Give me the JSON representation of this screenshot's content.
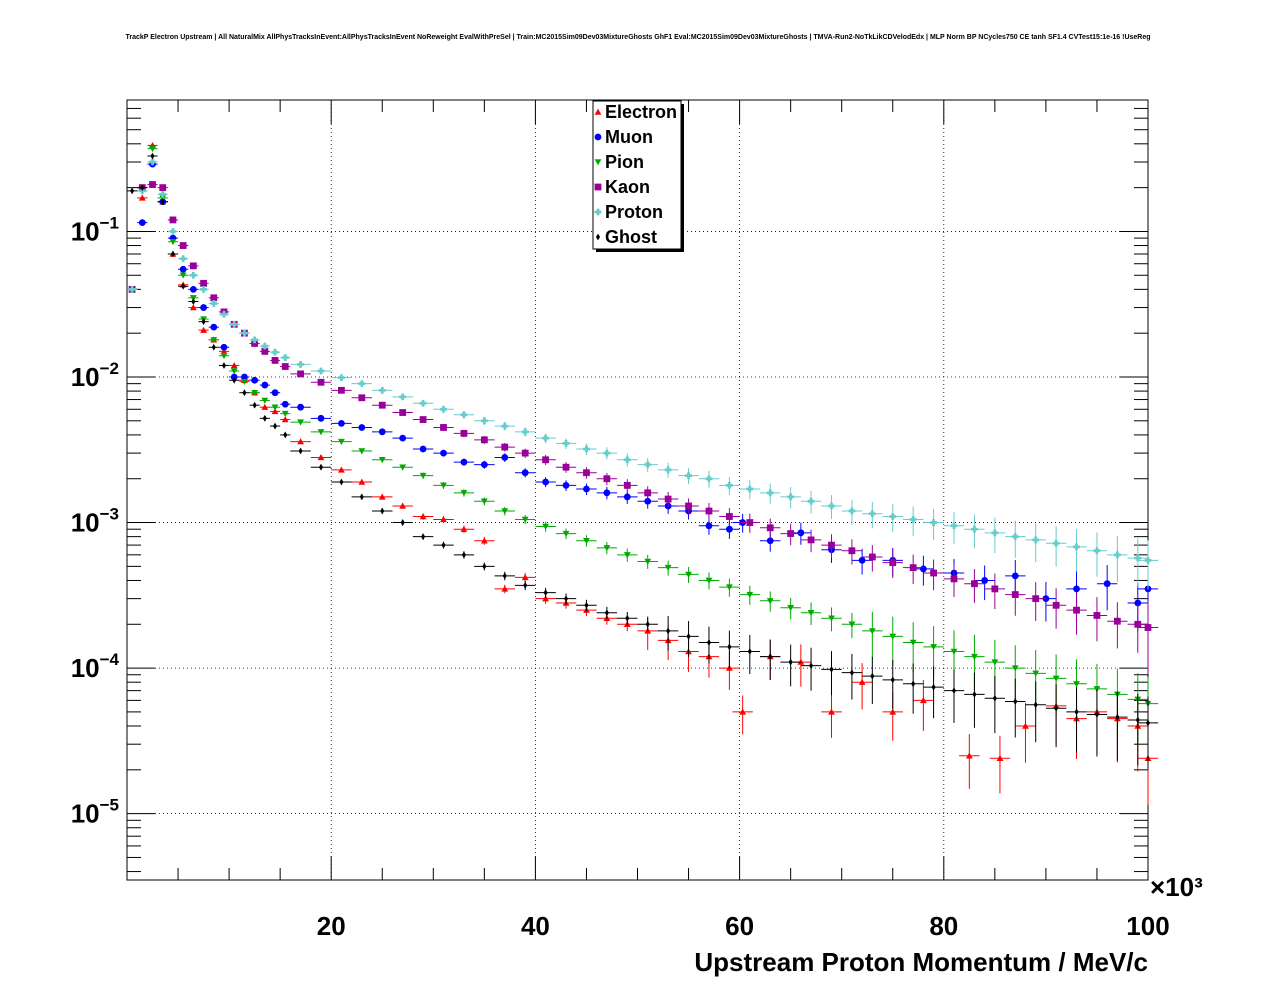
{
  "chart_data": {
    "type": "scatter",
    "title": "TrackP Electron Upstream | All NaturalMix AllPhysTracksInEvent:AllPhysTracksInEvent NoReweight EvalWithPreSel | Train:MC2015Sim09Dev03MixtureGhosts GhF1 Eval:MC2015Sim09Dev03MixtureGhosts | TMVA-Run2-NoTkLikCDVelodEdx | MLP Norm BP NCycles750 CE tanh SF1.4 CVTest15:1e-16 !UseReg",
    "xlabel": "Upstream Proton Momentum / MeV/c",
    "ylabel": "",
    "x_multiplier": "×10³",
    "xlim": [
      0,
      100000
    ],
    "ylim": [
      3.5e-06,
      0.8
    ],
    "y_scale": "log",
    "grid": true,
    "legend_position": "top-center",
    "x_ticks": [
      {
        "value": 20000,
        "label": "20"
      },
      {
        "value": 40000,
        "label": "40"
      },
      {
        "value": 60000,
        "label": "60"
      },
      {
        "value": 80000,
        "label": "80"
      },
      {
        "value": 100000,
        "label": "100"
      }
    ],
    "y_ticks": [
      {
        "value": 0.1,
        "mant": "10",
        "exp": "−1"
      },
      {
        "value": 0.01,
        "mant": "10",
        "exp": "−2"
      },
      {
        "value": 0.001,
        "mant": "10",
        "exp": "−3"
      },
      {
        "value": 0.0001,
        "mant": "10",
        "exp": "−4"
      },
      {
        "value": 1e-05,
        "mant": "10",
        "exp": "−5"
      }
    ],
    "series": [
      {
        "name": "Electron",
        "color": "#ff0000",
        "marker": "triangle-up",
        "x": [
          500,
          1500,
          2500,
          3500,
          4500,
          5500,
          6500,
          7500,
          8500,
          9500,
          10500,
          11500,
          12500,
          13500,
          14500,
          15500,
          17000,
          19000,
          21000,
          23000,
          25000,
          27000,
          29000,
          31000,
          33000,
          35000,
          37000,
          39000,
          41000,
          43000,
          45000,
          47000,
          49000,
          51000,
          53000,
          55000,
          57000,
          59000,
          60300,
          63000,
          66000,
          69000,
          72000,
          75000,
          78000,
          82500,
          85500,
          88000,
          91000,
          93000,
          95000,
          97000,
          99000,
          100000
        ],
        "y": [
          0.04,
          0.17,
          0.39,
          0.16,
          0.07,
          0.043,
          0.03,
          0.021,
          0.018,
          0.015,
          0.012,
          0.0095,
          0.0078,
          0.0062,
          0.0058,
          0.0051,
          0.0036,
          0.0028,
          0.0023,
          0.0019,
          0.0015,
          0.0013,
          0.0011,
          0.00105,
          0.0009,
          0.00075,
          0.00035,
          0.00042,
          0.0003,
          0.00028,
          0.00025,
          0.00022,
          0.0002,
          0.00018,
          0.000155,
          0.00013,
          0.00012,
          0.0001,
          5e-05,
          0.00012,
          0.00011,
          5e-05,
          8e-05,
          5e-05,
          6e-05,
          2.5e-05,
          2.4e-05,
          4e-05,
          5.5e-05,
          4.5e-05,
          5e-05,
          4.5e-05,
          4e-05,
          2.4e-05
        ]
      },
      {
        "name": "Muon",
        "color": "#0000ff",
        "marker": "circle",
        "x": [
          500,
          1500,
          2500,
          3500,
          4500,
          5500,
          6500,
          7500,
          8500,
          9500,
          10500,
          11500,
          12500,
          13500,
          14500,
          15500,
          17000,
          19000,
          21000,
          23000,
          25000,
          27000,
          29000,
          31000,
          33000,
          35000,
          37000,
          39000,
          41000,
          43000,
          45000,
          47000,
          49000,
          51000,
          53000,
          55000,
          57000,
          59000,
          60300,
          63000,
          66000,
          69000,
          72000,
          75000,
          78000,
          81000,
          84000,
          87000,
          90000,
          93000,
          96000,
          99000,
          100000
        ],
        "y": [
          0.04,
          0.115,
          0.29,
          0.16,
          0.09,
          0.055,
          0.04,
          0.03,
          0.022,
          0.016,
          0.01,
          0.01,
          0.0095,
          0.0088,
          0.0078,
          0.0065,
          0.0062,
          0.0052,
          0.0048,
          0.0045,
          0.0042,
          0.0038,
          0.0032,
          0.003,
          0.0026,
          0.0025,
          0.0028,
          0.0022,
          0.0019,
          0.0018,
          0.0017,
          0.0016,
          0.0015,
          0.0014,
          0.0013,
          0.0012,
          0.00095,
          0.0009,
          0.001,
          0.00075,
          0.00085,
          0.00065,
          0.00055,
          0.00055,
          0.00048,
          0.00045,
          0.0004,
          0.00043,
          0.0003,
          0.00035,
          0.00038,
          0.00028,
          0.00035
        ]
      },
      {
        "name": "Pion",
        "color": "#00aa00",
        "marker": "triangle-down",
        "x": [
          500,
          1500,
          2500,
          3500,
          4500,
          5500,
          6500,
          7500,
          8500,
          9500,
          10500,
          11500,
          12500,
          13500,
          14500,
          15500,
          17000,
          19000,
          21000,
          23000,
          25000,
          27000,
          29000,
          31000,
          33000,
          35000,
          37000,
          39000,
          41000,
          43000,
          45000,
          47000,
          49000,
          51000,
          53000,
          55000,
          57000,
          59000,
          61000,
          63000,
          65000,
          67000,
          69000,
          71000,
          73000,
          75000,
          77000,
          79000,
          81000,
          83000,
          85000,
          87000,
          89000,
          91000,
          93000,
          95000,
          97000,
          99000,
          100000
        ],
        "y": [
          0.04,
          0.19,
          0.37,
          0.17,
          0.085,
          0.05,
          0.035,
          0.025,
          0.018,
          0.014,
          0.011,
          0.0093,
          0.0078,
          0.0069,
          0.0062,
          0.0056,
          0.0049,
          0.0042,
          0.0036,
          0.0031,
          0.0027,
          0.0024,
          0.0021,
          0.0018,
          0.0016,
          0.0014,
          0.0012,
          0.00105,
          0.00094,
          0.00084,
          0.00075,
          0.00067,
          0.0006,
          0.00054,
          0.00049,
          0.00044,
          0.0004,
          0.00036,
          0.00032,
          0.00029,
          0.00026,
          0.00024,
          0.00022,
          0.0002,
          0.00018,
          0.000165,
          0.00015,
          0.00014,
          0.00013,
          0.00012,
          0.00011,
          0.0001,
          9.2e-05,
          8.5e-05,
          7.8e-05,
          7.2e-05,
          6.6e-05,
          6.1e-05,
          5.7e-05
        ]
      },
      {
        "name": "Kaon",
        "color": "#990099",
        "marker": "square",
        "x": [
          500,
          1500,
          2500,
          3500,
          4500,
          5500,
          6500,
          7500,
          8500,
          9500,
          10500,
          11500,
          12500,
          13500,
          14500,
          15500,
          17000,
          19000,
          21000,
          23000,
          25000,
          27000,
          29000,
          31000,
          33000,
          35000,
          37000,
          39000,
          41000,
          43000,
          45000,
          47000,
          49000,
          51000,
          53000,
          55000,
          57000,
          59000,
          61000,
          63000,
          65000,
          67000,
          69000,
          71000,
          73000,
          75000,
          77000,
          79000,
          81000,
          83000,
          85000,
          87000,
          89000,
          91000,
          93000,
          95000,
          97000,
          99000,
          100000
        ],
        "y": [
          0.04,
          0.2,
          0.21,
          0.2,
          0.12,
          0.08,
          0.058,
          0.044,
          0.035,
          0.028,
          0.023,
          0.02,
          0.017,
          0.015,
          0.013,
          0.0118,
          0.0105,
          0.0092,
          0.0081,
          0.0072,
          0.0064,
          0.0057,
          0.0051,
          0.0045,
          0.0041,
          0.0037,
          0.0033,
          0.003,
          0.0027,
          0.0024,
          0.0022,
          0.002,
          0.0018,
          0.0016,
          0.00145,
          0.0013,
          0.0012,
          0.0011,
          0.001,
          0.00092,
          0.00084,
          0.00076,
          0.0007,
          0.00064,
          0.00058,
          0.00053,
          0.00049,
          0.00045,
          0.00041,
          0.00038,
          0.00035,
          0.00032,
          0.0003,
          0.00027,
          0.00025,
          0.00023,
          0.00021,
          0.0002,
          0.00019
        ]
      },
      {
        "name": "Proton",
        "color": "#66cccc",
        "marker": "cross",
        "x": [
          500,
          1500,
          2500,
          3500,
          4500,
          5500,
          6500,
          7500,
          8500,
          9500,
          10500,
          11500,
          12500,
          13500,
          14500,
          15500,
          17000,
          19000,
          21000,
          23000,
          25000,
          27000,
          29000,
          31000,
          33000,
          35000,
          37000,
          39000,
          41000,
          43000,
          45000,
          47000,
          49000,
          51000,
          53000,
          55000,
          57000,
          59000,
          61000,
          63000,
          65000,
          67000,
          69000,
          71000,
          73000,
          75000,
          77000,
          79000,
          81000,
          83000,
          85000,
          87000,
          89000,
          91000,
          93000,
          95000,
          97000,
          99000,
          100000
        ],
        "y": [
          0.04,
          0.19,
          0.3,
          0.18,
          0.1,
          0.065,
          0.05,
          0.04,
          0.032,
          0.027,
          0.023,
          0.02,
          0.018,
          0.0163,
          0.0148,
          0.0136,
          0.0122,
          0.011,
          0.0099,
          0.009,
          0.0081,
          0.0073,
          0.0066,
          0.006,
          0.0055,
          0.005,
          0.0046,
          0.0042,
          0.0038,
          0.0035,
          0.0032,
          0.003,
          0.0027,
          0.0025,
          0.0023,
          0.0021,
          0.002,
          0.0018,
          0.0017,
          0.0016,
          0.0015,
          0.0014,
          0.0013,
          0.0012,
          0.00115,
          0.0011,
          0.00105,
          0.001,
          0.00095,
          0.0009,
          0.00085,
          0.0008,
          0.00076,
          0.00072,
          0.00068,
          0.00064,
          0.0006,
          0.00057,
          0.00055
        ]
      },
      {
        "name": "Ghost",
        "color": "#000000",
        "marker": "diamond",
        "x": [
          500,
          1500,
          2500,
          3500,
          4500,
          5500,
          6500,
          7500,
          8500,
          9500,
          10500,
          11500,
          12500,
          13500,
          14500,
          15500,
          17000,
          19000,
          21000,
          23000,
          25000,
          27000,
          29000,
          31000,
          33000,
          35000,
          37000,
          39000,
          41000,
          43000,
          45000,
          47000,
          49000,
          51000,
          53000,
          55000,
          57000,
          59000,
          61000,
          63000,
          65000,
          67000,
          69000,
          71000,
          73000,
          75000,
          77000,
          79000,
          81000,
          83000,
          85000,
          87000,
          89000,
          91000,
          93000,
          95000,
          97000,
          99000,
          100000
        ],
        "y": [
          0.19,
          0.2,
          0.33,
          0.16,
          0.07,
          0.042,
          0.033,
          0.024,
          0.016,
          0.012,
          0.0095,
          0.0078,
          0.0064,
          0.0052,
          0.0046,
          0.004,
          0.0031,
          0.0024,
          0.0019,
          0.0015,
          0.0012,
          0.001,
          0.0008,
          0.0007,
          0.0006,
          0.0005,
          0.00043,
          0.00037,
          0.00033,
          0.0003,
          0.00027,
          0.00024,
          0.00022,
          0.0002,
          0.00018,
          0.000165,
          0.00015,
          0.00014,
          0.00013,
          0.00012,
          0.00011,
          0.000104,
          9.8e-05,
          9.3e-05,
          8.8e-05,
          8.3e-05,
          7.8e-05,
          7.4e-05,
          7e-05,
          6.6e-05,
          6.2e-05,
          5.9e-05,
          5.6e-05,
          5.3e-05,
          5e-05,
          4.8e-05,
          4.6e-05,
          4.4e-05,
          4.2e-05
        ]
      }
    ]
  }
}
